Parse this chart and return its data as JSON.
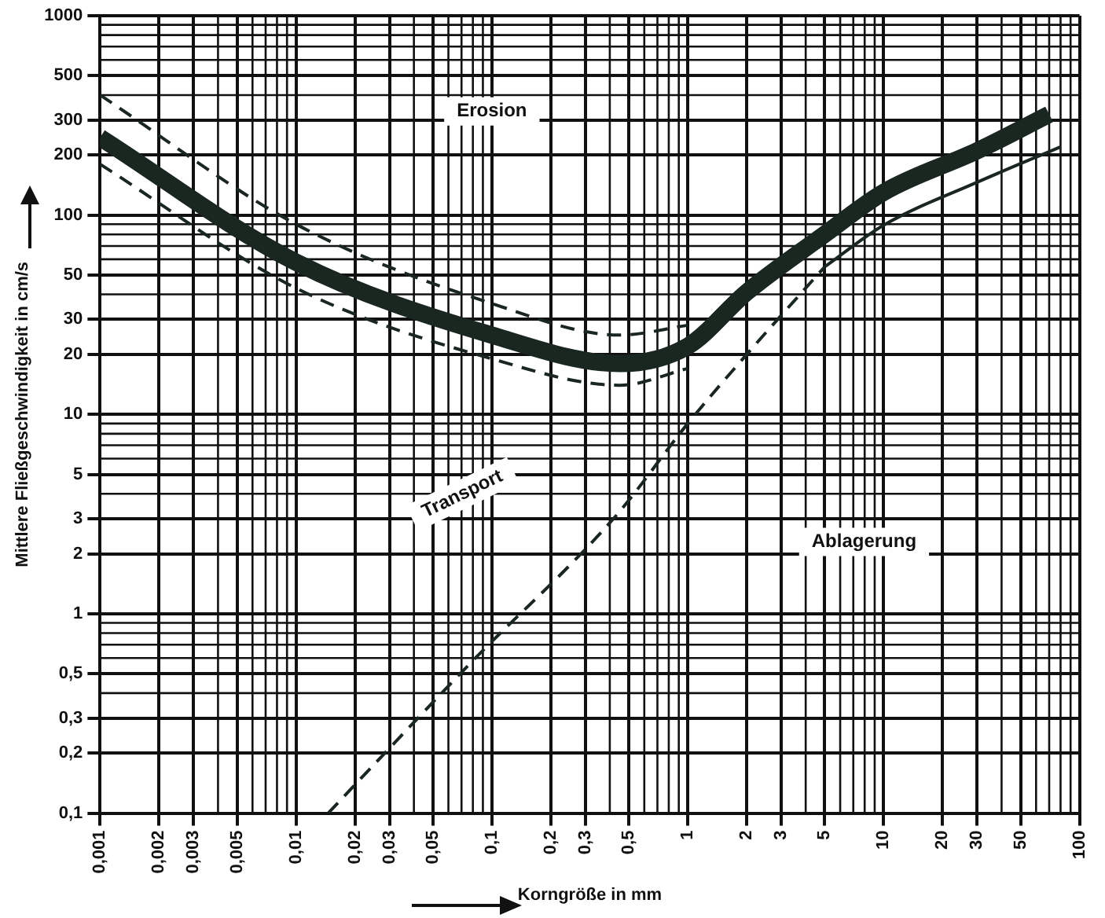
{
  "chart_data": {
    "type": "line",
    "xlabel": "Korngröße in mm",
    "ylabel": "Mittlere Fließgeschwindigkeit in cm/s",
    "log": "xy",
    "grid": true,
    "legend": false,
    "marker": "none",
    "xlim": [
      0.001,
      100
    ],
    "ylim": [
      0.1,
      1000
    ],
    "xticks": [
      {
        "value": 0.001,
        "label": "0,001"
      },
      {
        "value": 0.002,
        "label": "0,002"
      },
      {
        "value": 0.003,
        "label": "0,003"
      },
      {
        "value": 0.005,
        "label": "0,005"
      },
      {
        "value": 0.01,
        "label": "0,01"
      },
      {
        "value": 0.02,
        "label": "0,02"
      },
      {
        "value": 0.03,
        "label": "0,03"
      },
      {
        "value": 0.05,
        "label": "0,05"
      },
      {
        "value": 0.1,
        "label": "0,1"
      },
      {
        "value": 0.2,
        "label": "0,2"
      },
      {
        "value": 0.3,
        "label": "0,3"
      },
      {
        "value": 0.5,
        "label": "0,5"
      },
      1,
      2,
      3,
      5,
      10,
      20,
      30,
      50,
      100
    ],
    "yticks": [
      {
        "value": 0.1,
        "label": "0,1"
      },
      {
        "value": 0.2,
        "label": "0,2"
      },
      {
        "value": 0.3,
        "label": "0,3"
      },
      {
        "value": 0.5,
        "label": "0,5"
      },
      1,
      2,
      3,
      5,
      10,
      20,
      30,
      50,
      100,
      200,
      300,
      500,
      1000
    ],
    "series": [
      {
        "color": "#1a2620",
        "x": [
          0.001,
          0.01,
          0.1,
          0.45,
          1,
          2,
          5,
          10,
          30,
          70
        ],
        "values": [
          245,
          58,
          25,
          18,
          22,
          41,
          80,
          130,
          210,
          320
        ]
      },
      {
        "color": "#1a2620",
        "line_style": "dashed",
        "x": [
          0.001,
          0.01,
          0.1,
          0.45,
          1
        ],
        "values": [
          400,
          90,
          36,
          25,
          28
        ]
      },
      {
        "color": "#1a2620",
        "line_style": "dashed",
        "x": [
          0.001,
          0.01,
          0.1,
          0.45,
          1
        ],
        "values": [
          180,
          43,
          19,
          14,
          17
        ]
      },
      {
        "color": "#1a2620",
        "line_style": "dashed",
        "x": [
          0.0146,
          0.077,
          0.43,
          1,
          2,
          5
        ],
        "values": [
          0.1,
          0.56,
          3.1,
          9,
          20,
          55
        ]
      },
      {
        "color": "#1a2620",
        "line_style": "solid",
        "x": [
          5,
          10,
          30,
          80
        ],
        "values": [
          55,
          89,
          146,
          220
        ]
      }
    ],
    "annotations": [
      "Erosion",
      "Transport",
      "Ablagerung"
    ]
  }
}
